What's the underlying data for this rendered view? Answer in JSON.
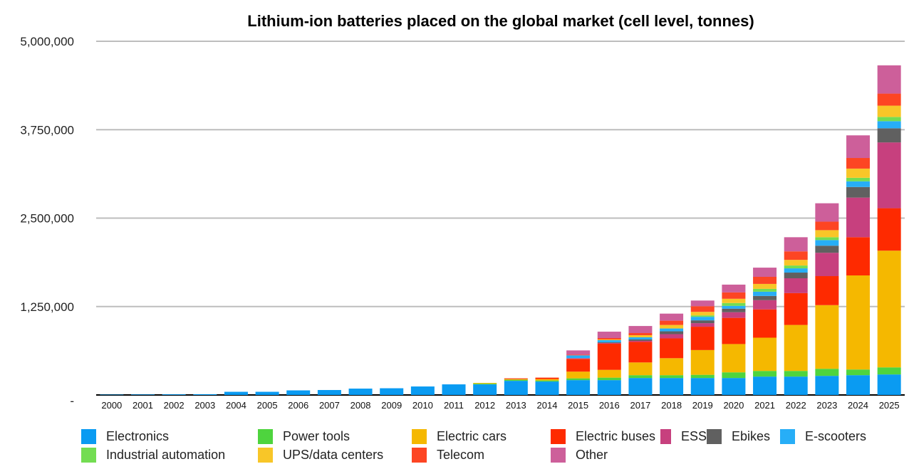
{
  "chart_data": {
    "type": "bar",
    "stacked": true,
    "title": "Lithium-ion batteries placed on the global market (cell level, tonnes)",
    "xlabel": "",
    "ylabel": "",
    "ylim": [
      0,
      5000000
    ],
    "yticks": [
      {
        "value": 0,
        "label": "-"
      },
      {
        "value": 1250000,
        "label": "1,250,000"
      },
      {
        "value": 2500000,
        "label": "2,500,000"
      },
      {
        "value": 3750000,
        "label": "3,750,000"
      },
      {
        "value": 5000000,
        "label": "5,000,000"
      }
    ],
    "grid": true,
    "legend_position": "bottom",
    "categories": [
      "2000",
      "2001",
      "2002",
      "2003",
      "2004",
      "2005",
      "2006",
      "2007",
      "2008",
      "2009",
      "2010",
      "2011",
      "2012",
      "2013",
      "2014",
      "2015",
      "2016",
      "2017",
      "2018",
      "2019",
      "2020",
      "2021",
      "2022",
      "2023",
      "2024",
      "2025"
    ],
    "series": [
      {
        "name": "Electronics",
        "color": "#0a9bf2",
        "values": [
          5000,
          7000,
          9000,
          11000,
          45000,
          45000,
          65000,
          70000,
          90000,
          95000,
          120000,
          150000,
          150000,
          200000,
          190000,
          210000,
          210000,
          240000,
          240000,
          240000,
          240000,
          260000,
          260000,
          270000,
          280000,
          290000
        ]
      },
      {
        "name": "Power tools",
        "color": "#4ed43e",
        "values": [
          0,
          0,
          0,
          0,
          0,
          0,
          0,
          0,
          0,
          0,
          0,
          0,
          10000,
          15000,
          15000,
          25000,
          35000,
          40000,
          40000,
          45000,
          80000,
          80000,
          80000,
          100000,
          80000,
          100000
        ]
      },
      {
        "name": "Electric cars",
        "color": "#f5b800",
        "values": [
          0,
          0,
          0,
          0,
          0,
          0,
          0,
          0,
          0,
          0,
          0,
          0,
          10000,
          10000,
          20000,
          95000,
          110000,
          180000,
          240000,
          350000,
          400000,
          470000,
          650000,
          900000,
          1330000,
          1650000
        ]
      },
      {
        "name": "Electric buses",
        "color": "#fe2a00",
        "values": [
          0,
          0,
          0,
          0,
          0,
          0,
          0,
          0,
          0,
          0,
          0,
          0,
          0,
          10000,
          20000,
          180000,
          370000,
          290000,
          280000,
          330000,
          370000,
          400000,
          450000,
          410000,
          540000,
          600000
        ]
      },
      {
        "name": "ESS",
        "color": "#c7407e",
        "values": [
          0,
          0,
          0,
          0,
          0,
          0,
          0,
          0,
          0,
          0,
          0,
          0,
          0,
          0,
          0,
          10000,
          10000,
          15000,
          60000,
          50000,
          80000,
          130000,
          210000,
          330000,
          560000,
          930000
        ]
      },
      {
        "name": "Ebikes",
        "color": "#606060",
        "values": [
          0,
          0,
          0,
          0,
          0,
          0,
          0,
          0,
          0,
          0,
          0,
          0,
          0,
          0,
          0,
          0,
          10000,
          20000,
          40000,
          40000,
          50000,
          60000,
          80000,
          100000,
          150000,
          200000
        ]
      },
      {
        "name": "E-scooters",
        "color": "#27aef7",
        "values": [
          0,
          0,
          0,
          0,
          0,
          0,
          0,
          0,
          0,
          0,
          0,
          0,
          0,
          0,
          0,
          40000,
          30000,
          30000,
          40000,
          50000,
          40000,
          60000,
          60000,
          80000,
          80000,
          100000
        ]
      },
      {
        "name": "Industrial automation",
        "color": "#73dd52",
        "values": [
          0,
          0,
          0,
          0,
          0,
          0,
          0,
          0,
          0,
          0,
          0,
          0,
          0,
          0,
          0,
          0,
          0,
          0,
          0,
          20000,
          40000,
          40000,
          40000,
          40000,
          50000,
          60000
        ]
      },
      {
        "name": "UPS/data centers",
        "color": "#f8c628",
        "values": [
          0,
          0,
          0,
          0,
          0,
          0,
          0,
          0,
          0,
          0,
          0,
          0,
          0,
          0,
          0,
          0,
          10000,
          30000,
          50000,
          50000,
          60000,
          70000,
          80000,
          100000,
          130000,
          160000
        ]
      },
      {
        "name": "Telecom",
        "color": "#fd4523",
        "values": [
          0,
          0,
          0,
          0,
          0,
          0,
          0,
          0,
          0,
          0,
          0,
          0,
          0,
          0,
          0,
          10000,
          20000,
          30000,
          60000,
          80000,
          90000,
          100000,
          120000,
          120000,
          150000,
          170000
        ]
      },
      {
        "name": "Other",
        "color": "#cd5f9a",
        "values": [
          0,
          0,
          0,
          0,
          0,
          0,
          0,
          0,
          0,
          0,
          0,
          0,
          0,
          0,
          0,
          60000,
          90000,
          100000,
          100000,
          80000,
          110000,
          130000,
          200000,
          260000,
          320000,
          400000
        ]
      }
    ]
  }
}
